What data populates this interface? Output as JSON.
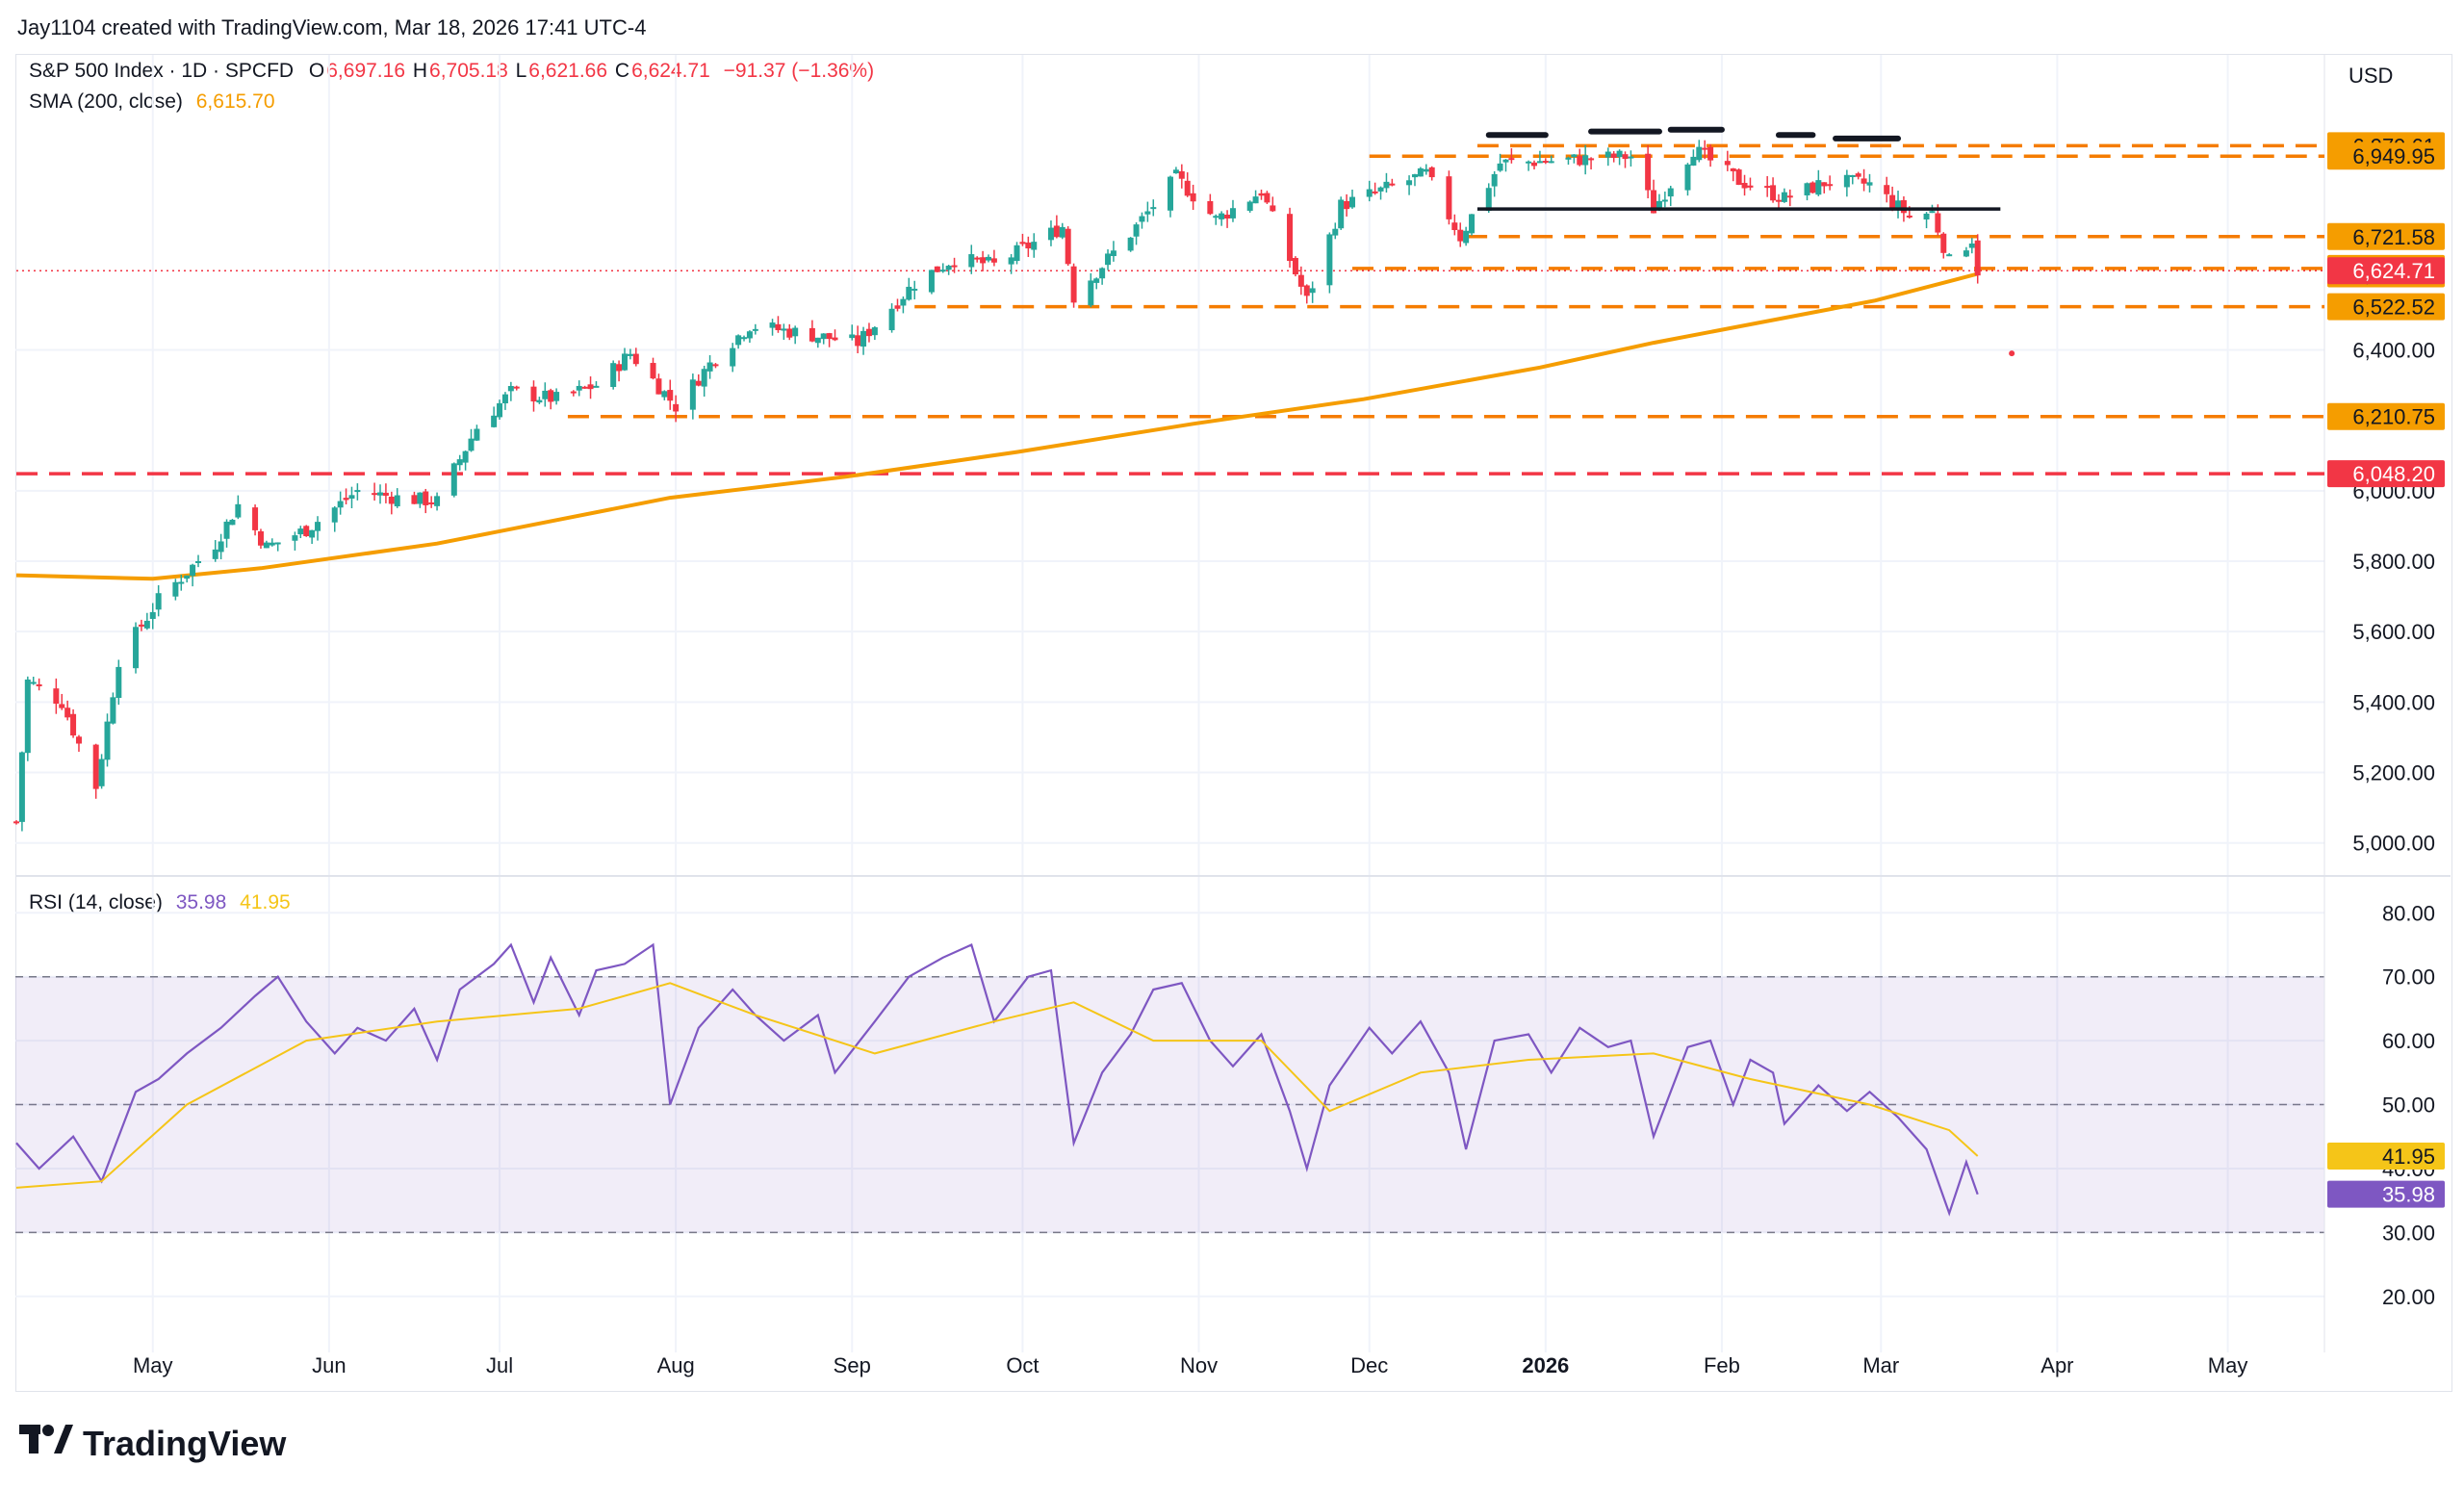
{
  "header": {
    "credit": "Jay1104 created with TradingView.com, Mar 18, 2026 17:41 UTC-4"
  },
  "main_legend": {
    "symbol": "S&P 500 Index · 1D · SPCFD",
    "o_label": "O",
    "o_value": "6,697.16",
    "h_label": "H",
    "h_value": "6,705.18",
    "l_label": "L",
    "l_value": "6,621.66",
    "c_label": "C",
    "c_value": "6,624.71",
    "change": "−91.37 (−1.36%)",
    "sma_label": "SMA (200, close)",
    "sma_value": "6,615.70"
  },
  "rsi_legend": {
    "label": "RSI (14, close)",
    "rsi_value": "35.98",
    "ma_value": "41.95"
  },
  "currency": "USD",
  "brand": {
    "name": "TradingView"
  },
  "colors": {
    "up": "#26a69a",
    "down": "#f23645",
    "sma": "#f59d00",
    "rsi": "#7e57c2",
    "rsi_ma": "#f5c518",
    "level": "#f57c00",
    "red_level": "#f23645"
  },
  "chart_data": [
    {
      "type": "candlestick",
      "title": "S&P 500 Index · 1D · SPCFD",
      "y_unit": "USD",
      "yticks": [
        "5,000.00",
        "5,200.00",
        "5,400.00",
        "5,600.00",
        "5,800.00",
        "6,000.00",
        "6,400.00"
      ],
      "ylim": [
        4920,
        7120
      ],
      "x_ticks": [
        "May",
        "Jun",
        "Jul",
        "Aug",
        "Sep",
        "Oct",
        "Nov",
        "Dec",
        "2026",
        "Feb",
        "Mar",
        "Apr",
        "May"
      ],
      "x_range": [
        "2025-04-07",
        "2026-05-18"
      ],
      "ohlc": {
        "open": 6697.16,
        "high": 6705.18,
        "low": 6621.66,
        "close": 6624.71,
        "change": -91.37,
        "change_pct": -1.36
      },
      "close_path": [
        [
          "2025-04-07",
          5060
        ],
        [
          "2025-04-09",
          5460
        ],
        [
          "2025-04-15",
          5400
        ],
        [
          "2025-04-21",
          5160
        ],
        [
          "2025-04-25",
          5520
        ],
        [
          "2025-05-02",
          5690
        ],
        [
          "2025-05-12",
          5850
        ],
        [
          "2025-05-16",
          5960
        ],
        [
          "2025-05-21",
          5840
        ],
        [
          "2025-05-28",
          5890
        ],
        [
          "2025-06-06",
          6000
        ],
        [
          "2025-06-13",
          5980
        ],
        [
          "2025-06-20",
          5970
        ],
        [
          "2025-06-27",
          6180
        ],
        [
          "2025-07-03",
          6280
        ],
        [
          "2025-07-11",
          6260
        ],
        [
          "2025-07-18",
          6300
        ],
        [
          "2025-07-24",
          6390
        ],
        [
          "2025-08-01",
          6240
        ],
        [
          "2025-08-08",
          6380
        ],
        [
          "2025-08-14",
          6470
        ],
        [
          "2025-08-22",
          6450
        ],
        [
          "2025-09-02",
          6420
        ],
        [
          "2025-09-12",
          6590
        ],
        [
          "2025-09-19",
          6660
        ],
        [
          "2025-09-26",
          6640
        ],
        [
          "2025-10-08",
          6750
        ],
        [
          "2025-10-10",
          6550
        ],
        [
          "2025-10-20",
          6730
        ],
        [
          "2025-10-28",
          6890
        ],
        [
          "2025-11-04",
          6770
        ],
        [
          "2025-11-12",
          6850
        ],
        [
          "2025-11-20",
          6540
        ],
        [
          "2025-11-26",
          6810
        ],
        [
          "2025-12-11",
          6900
        ],
        [
          "2025-12-17",
          6720
        ],
        [
          "2025-12-24",
          6930
        ],
        [
          "2026-01-06",
          6940
        ],
        [
          "2026-01-16",
          6950
        ],
        [
          "2026-01-20",
          6800
        ],
        [
          "2026-01-27",
          6970
        ],
        [
          "2026-02-04",
          6880
        ],
        [
          "2026-02-12",
          6830
        ],
        [
          "2026-02-20",
          6880
        ],
        [
          "2026-02-27",
          6870
        ],
        [
          "2026-03-06",
          6780
        ],
        [
          "2026-03-10",
          6790
        ],
        [
          "2026-03-13",
          6650
        ],
        [
          "2026-03-17",
          6716
        ],
        [
          "2026-03-18",
          6624.71
        ]
      ],
      "sma": {
        "name": "SMA (200, close)",
        "last": 6615.7,
        "path": [
          [
            "2025-04-07",
            5760
          ],
          [
            "2025-05-01",
            5750
          ],
          [
            "2025-05-20",
            5780
          ],
          [
            "2025-06-20",
            5850
          ],
          [
            "2025-07-31",
            5980
          ],
          [
            "2025-08-31",
            6040
          ],
          [
            "2025-09-30",
            6110
          ],
          [
            "2025-10-31",
            6190
          ],
          [
            "2025-11-30",
            6260
          ],
          [
            "2025-12-31",
            6350
          ],
          [
            "2026-01-20",
            6420
          ],
          [
            "2026-02-28",
            6540
          ],
          [
            "2026-03-18",
            6615.7
          ]
        ]
      },
      "price_levels": [
        {
          "value": 6979.61,
          "label": "6,979.61",
          "style": "dashed-orange"
        },
        {
          "value": 6949.95,
          "label": "6,949.95",
          "style": "dashed-orange"
        },
        {
          "value": 6721.58,
          "label": "6,721.58",
          "style": "dashed-orange"
        },
        {
          "value": 6631.13,
          "label": "6,631.13",
          "style": "dashed-orange"
        },
        {
          "value": 6615.7,
          "label": "6,615.70",
          "style": "sma"
        },
        {
          "value": 6522.52,
          "label": "6,522.52",
          "style": "dashed-orange"
        },
        {
          "value": 6210.75,
          "label": "6,210.75",
          "style": "dashed-orange"
        },
        {
          "value": 6048.2,
          "label": "6,048.20",
          "style": "dashed-red"
        }
      ],
      "last_price": {
        "value": 6624.71,
        "label": "6,624.71"
      },
      "neckline": {
        "value": 6800,
        "from": "2025-12-20",
        "to": "2026-03-22"
      },
      "shoulders": [
        {
          "from": "2025-12-22",
          "to": "2026-01-01",
          "value": 7010
        },
        {
          "from": "2026-01-09",
          "to": "2026-01-21",
          "value": 7020
        },
        {
          "from": "2026-01-23",
          "to": "2026-02-01",
          "value": 7025
        },
        {
          "from": "2026-02-11",
          "to": "2026-02-17",
          "value": 7010
        },
        {
          "from": "2026-02-21",
          "to": "2026-03-04",
          "value": 7000
        }
      ],
      "marker": {
        "date": "2026-03-24",
        "value": 6390
      }
    },
    {
      "type": "line",
      "title": "RSI (14, close)",
      "yticks": [
        "20.00",
        "30.00",
        "40.00",
        "50.00",
        "60.00",
        "70.00",
        "80.00"
      ],
      "ylim": [
        15,
        82
      ],
      "band": [
        30,
        70
      ],
      "midline": 50,
      "series": [
        {
          "name": "RSI",
          "last": 35.98,
          "path": [
            [
              "2025-04-07",
              44
            ],
            [
              "2025-04-11",
              40
            ],
            [
              "2025-04-17",
              45
            ],
            [
              "2025-04-22",
              38
            ],
            [
              "2025-04-28",
              52
            ],
            [
              "2025-05-02",
              54
            ],
            [
              "2025-05-07",
              58
            ],
            [
              "2025-05-13",
              62
            ],
            [
              "2025-05-19",
              67
            ],
            [
              "2025-05-23",
              70
            ],
            [
              "2025-05-28",
              63
            ],
            [
              "2025-06-02",
              58
            ],
            [
              "2025-06-06",
              62
            ],
            [
              "2025-06-11",
              60
            ],
            [
              "2025-06-16",
              65
            ],
            [
              "2025-06-20",
              57
            ],
            [
              "2025-06-24",
              68
            ],
            [
              "2025-06-30",
              72
            ],
            [
              "2025-07-03",
              75
            ],
            [
              "2025-07-07",
              66
            ],
            [
              "2025-07-10",
              73
            ],
            [
              "2025-07-15",
              64
            ],
            [
              "2025-07-18",
              71
            ],
            [
              "2025-07-23",
              72
            ],
            [
              "2025-07-28",
              75
            ],
            [
              "2025-07-31",
              50
            ],
            [
              "2025-08-05",
              62
            ],
            [
              "2025-08-11",
              68
            ],
            [
              "2025-08-15",
              64
            ],
            [
              "2025-08-20",
              60
            ],
            [
              "2025-08-26",
              64
            ],
            [
              "2025-08-29",
              55
            ],
            [
              "2025-09-05",
              63
            ],
            [
              "2025-09-11",
              70
            ],
            [
              "2025-09-17",
              73
            ],
            [
              "2025-09-22",
              75
            ],
            [
              "2025-09-26",
              63
            ],
            [
              "2025-10-02",
              70
            ],
            [
              "2025-10-06",
              71
            ],
            [
              "2025-10-10",
              44
            ],
            [
              "2025-10-15",
              55
            ],
            [
              "2025-10-20",
              61
            ],
            [
              "2025-10-24",
              68
            ],
            [
              "2025-10-29",
              69
            ],
            [
              "2025-11-03",
              60
            ],
            [
              "2025-11-07",
              56
            ],
            [
              "2025-11-12",
              61
            ],
            [
              "2025-11-17",
              49
            ],
            [
              "2025-11-20",
              40
            ],
            [
              "2025-11-24",
              53
            ],
            [
              "2025-12-01",
              62
            ],
            [
              "2025-12-05",
              58
            ],
            [
              "2025-12-10",
              63
            ],
            [
              "2025-12-15",
              55
            ],
            [
              "2025-12-18",
              43
            ],
            [
              "2025-12-23",
              60
            ],
            [
              "2025-12-29",
              61
            ],
            [
              "2026-01-02",
              55
            ],
            [
              "2026-01-07",
              62
            ],
            [
              "2026-01-12",
              59
            ],
            [
              "2026-01-16",
              60
            ],
            [
              "2026-01-20",
              45
            ],
            [
              "2026-01-26",
              59
            ],
            [
              "2026-01-30",
              60
            ],
            [
              "2026-02-03",
              50
            ],
            [
              "2026-02-06",
              57
            ],
            [
              "2026-02-10",
              55
            ],
            [
              "2026-02-12",
              47
            ],
            [
              "2026-02-18",
              53
            ],
            [
              "2026-02-23",
              49
            ],
            [
              "2026-02-27",
              52
            ],
            [
              "2026-03-04",
              48
            ],
            [
              "2026-03-09",
              43
            ],
            [
              "2026-03-13",
              33
            ],
            [
              "2026-03-16",
              41
            ],
            [
              "2026-03-18",
              35.98
            ]
          ]
        },
        {
          "name": "RSI-based MA",
          "last": 41.95,
          "path": [
            [
              "2025-04-07",
              37
            ],
            [
              "2025-04-22",
              38
            ],
            [
              "2025-05-07",
              50
            ],
            [
              "2025-05-28",
              60
            ],
            [
              "2025-06-20",
              63
            ],
            [
              "2025-07-15",
              65
            ],
            [
              "2025-07-31",
              69
            ],
            [
              "2025-08-15",
              64
            ],
            [
              "2025-09-05",
              58
            ],
            [
              "2025-09-26",
              63
            ],
            [
              "2025-10-10",
              66
            ],
            [
              "2025-10-24",
              60
            ],
            [
              "2025-11-12",
              60
            ],
            [
              "2025-11-24",
              49
            ],
            [
              "2025-12-10",
              55
            ],
            [
              "2025-12-29",
              57
            ],
            [
              "2026-01-20",
              58
            ],
            [
              "2026-02-06",
              54
            ],
            [
              "2026-02-27",
              50
            ],
            [
              "2026-03-13",
              46
            ],
            [
              "2026-03-18",
              41.95
            ]
          ]
        }
      ]
    }
  ]
}
